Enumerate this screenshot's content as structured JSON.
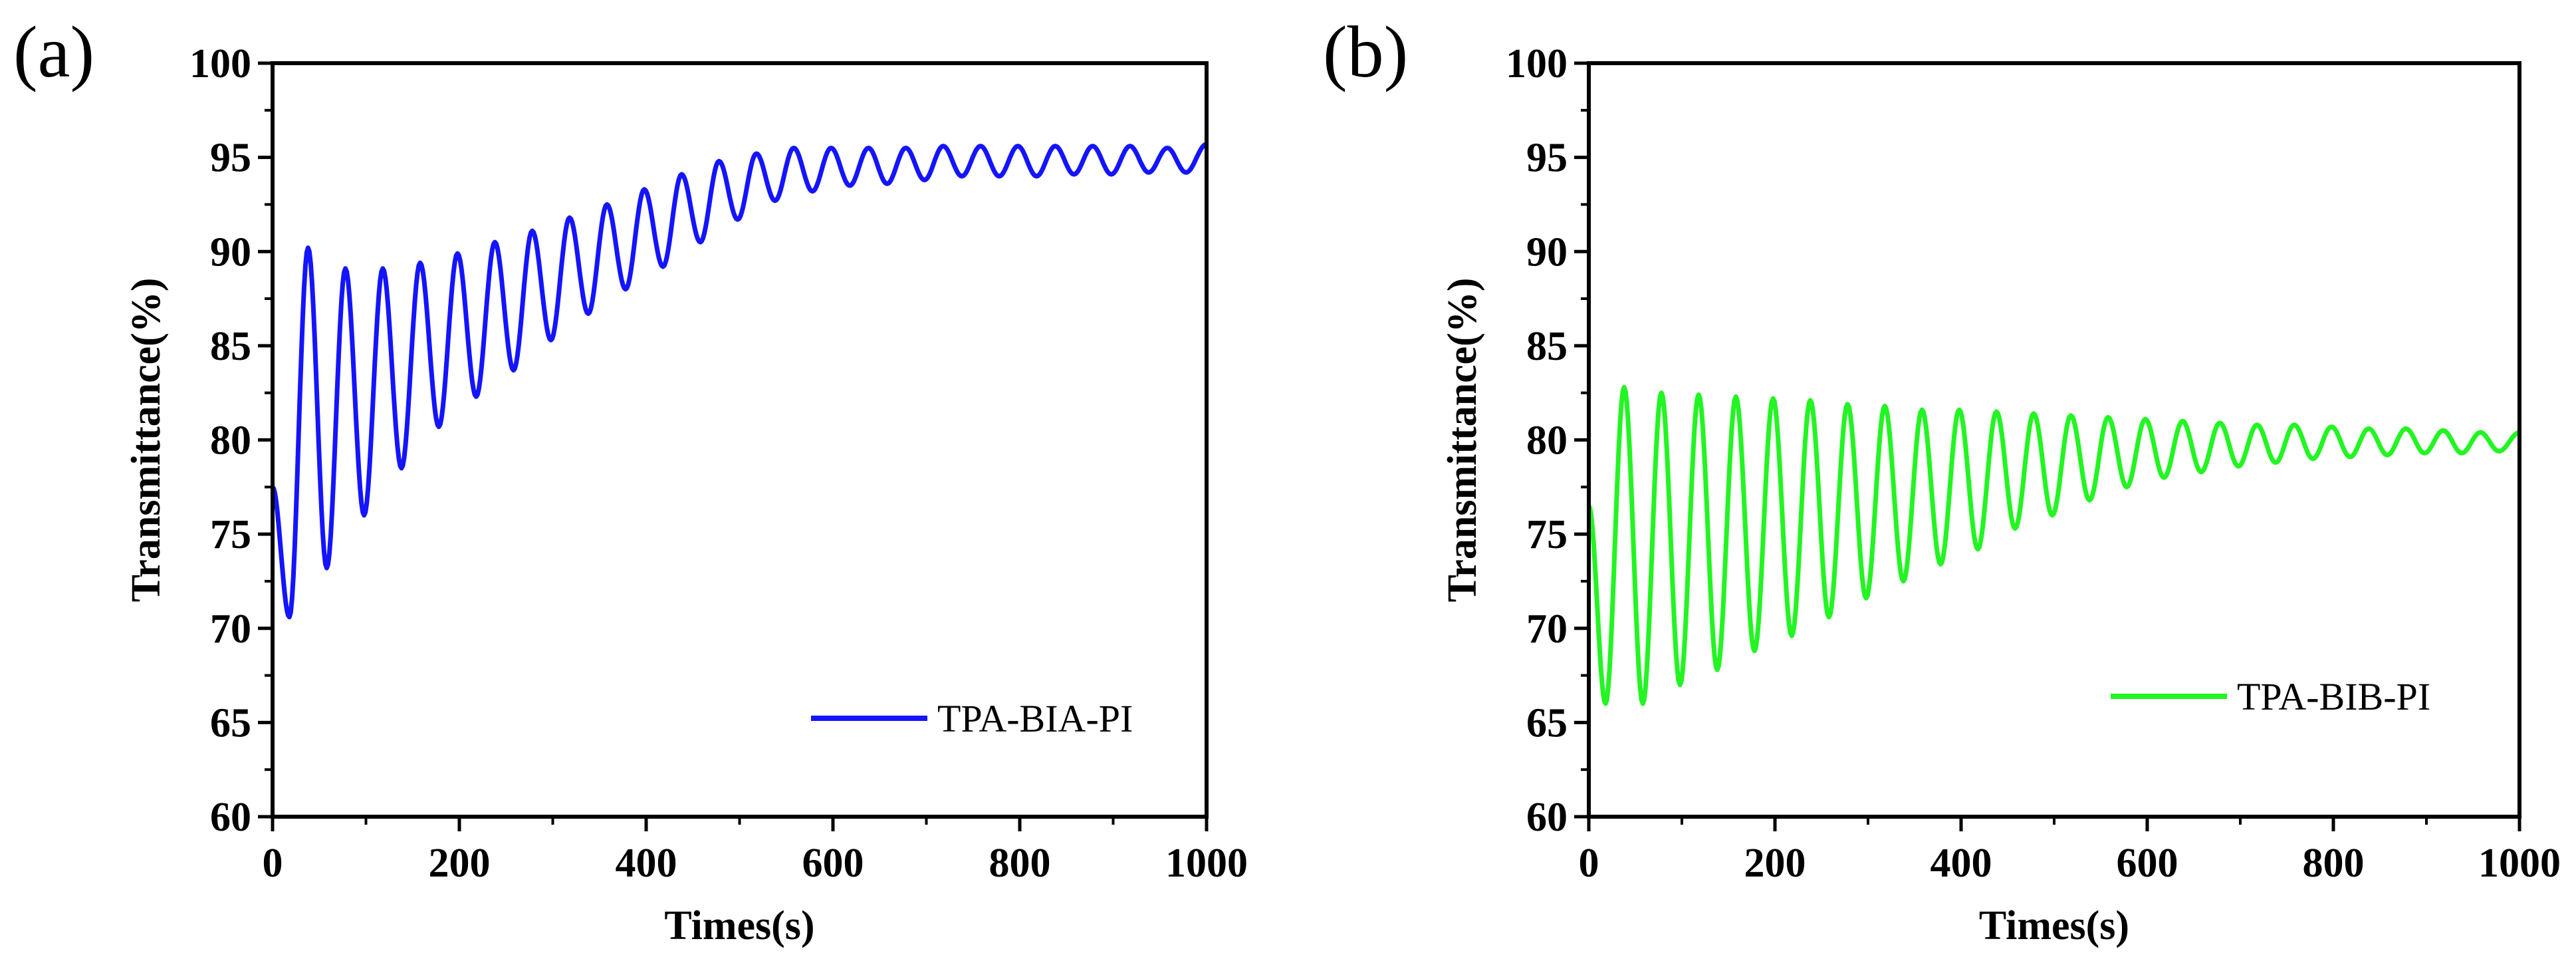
{
  "chart_data": [
    {
      "type": "line",
      "panel_label": "(a)",
      "xlabel": "Times(s)",
      "ylabel": "Transmittance(%)",
      "xlim": [
        0,
        1000
      ],
      "ylim": [
        60,
        100
      ],
      "xticks": [
        "0",
        "200",
        "400",
        "600",
        "800",
        "1000"
      ],
      "yticks": [
        "60",
        "65",
        "70",
        "75",
        "80",
        "85",
        "90",
        "95",
        "100"
      ],
      "legend_position": "bottom-right",
      "series": [
        {
          "name": "TPA-BIA-PI",
          "color": "#1414ff",
          "period": 40,
          "x_start": 0,
          "peaks": [
            [
              38,
              90.2
            ],
            [
              78,
              89.1
            ],
            [
              118,
              89.1
            ],
            [
              158,
              89.4
            ],
            [
              198,
              89.9
            ],
            [
              238,
              90.5
            ],
            [
              278,
              91.1
            ],
            [
              318,
              91.8
            ],
            [
              358,
              92.5
            ],
            [
              398,
              93.3
            ],
            [
              438,
              94.1
            ],
            [
              478,
              94.8
            ],
            [
              518,
              95.2
            ],
            [
              558,
              95.5
            ],
            [
              598,
              95.5
            ],
            [
              638,
              95.5
            ],
            [
              678,
              95.5
            ],
            [
              718,
              95.6
            ],
            [
              758,
              95.6
            ],
            [
              798,
              95.6
            ],
            [
              838,
              95.6
            ],
            [
              878,
              95.6
            ],
            [
              918,
              95.6
            ],
            [
              958,
              95.5
            ],
            [
              1000,
              95.7
            ]
          ],
          "troughs": [
            [
              18,
              70.6
            ],
            [
              58,
              73.2
            ],
            [
              98,
              76.0
            ],
            [
              138,
              78.5
            ],
            [
              178,
              80.7
            ],
            [
              218,
              82.3
            ],
            [
              258,
              83.7
            ],
            [
              298,
              85.3
            ],
            [
              338,
              86.7
            ],
            [
              378,
              88.0
            ],
            [
              418,
              89.2
            ],
            [
              458,
              90.5
            ],
            [
              498,
              91.7
            ],
            [
              538,
              92.7
            ],
            [
              578,
              93.2
            ],
            [
              618,
              93.5
            ],
            [
              658,
              93.6
            ],
            [
              698,
              93.8
            ],
            [
              738,
              94.0
            ],
            [
              778,
              94.0
            ],
            [
              818,
              94.0
            ],
            [
              858,
              94.1
            ],
            [
              898,
              94.1
            ],
            [
              938,
              94.2
            ],
            [
              978,
              94.2
            ]
          ],
          "start_value": 77.5
        }
      ]
    },
    {
      "type": "line",
      "panel_label": "(b)",
      "xlabel": "Times(s)",
      "ylabel": "Transmittance(%)",
      "xlim": [
        0,
        1000
      ],
      "ylim": [
        60,
        100
      ],
      "xticks": [
        "0",
        "200",
        "400",
        "600",
        "800",
        "1000"
      ],
      "yticks": [
        "60",
        "65",
        "70",
        "75",
        "80",
        "85",
        "90",
        "95",
        "100"
      ],
      "legend_position": "bottom-right",
      "series": [
        {
          "name": "TPA-BIB-PI",
          "color": "#22f522",
          "period": 40,
          "x_start": 0,
          "peaks": [
            [
              38,
              82.8
            ],
            [
              78,
              82.5
            ],
            [
              118,
              82.4
            ],
            [
              158,
              82.3
            ],
            [
              198,
              82.2
            ],
            [
              238,
              82.1
            ],
            [
              278,
              81.9
            ],
            [
              318,
              81.8
            ],
            [
              358,
              81.6
            ],
            [
              398,
              81.6
            ],
            [
              438,
              81.5
            ],
            [
              478,
              81.4
            ],
            [
              518,
              81.3
            ],
            [
              558,
              81.2
            ],
            [
              598,
              81.1
            ],
            [
              638,
              81.0
            ],
            [
              678,
              80.9
            ],
            [
              718,
              80.8
            ],
            [
              758,
              80.8
            ],
            [
              798,
              80.7
            ],
            [
              838,
              80.6
            ],
            [
              878,
              80.6
            ],
            [
              918,
              80.5
            ],
            [
              958,
              80.4
            ],
            [
              1000,
              80.4
            ]
          ],
          "troughs": [
            [
              18,
              66.0
            ],
            [
              58,
              66.0
            ],
            [
              98,
              67.0
            ],
            [
              138,
              67.8
            ],
            [
              178,
              68.8
            ],
            [
              218,
              69.6
            ],
            [
              258,
              70.6
            ],
            [
              298,
              71.6
            ],
            [
              338,
              72.5
            ],
            [
              378,
              73.4
            ],
            [
              418,
              74.2
            ],
            [
              458,
              75.3
            ],
            [
              498,
              76.0
            ],
            [
              538,
              76.8
            ],
            [
              578,
              77.5
            ],
            [
              618,
              78.0
            ],
            [
              658,
              78.3
            ],
            [
              698,
              78.6
            ],
            [
              738,
              78.8
            ],
            [
              778,
              79.0
            ],
            [
              818,
              79.1
            ],
            [
              858,
              79.2
            ],
            [
              898,
              79.3
            ],
            [
              938,
              79.3
            ],
            [
              978,
              79.4
            ]
          ],
          "start_value": 76.5
        }
      ]
    }
  ]
}
